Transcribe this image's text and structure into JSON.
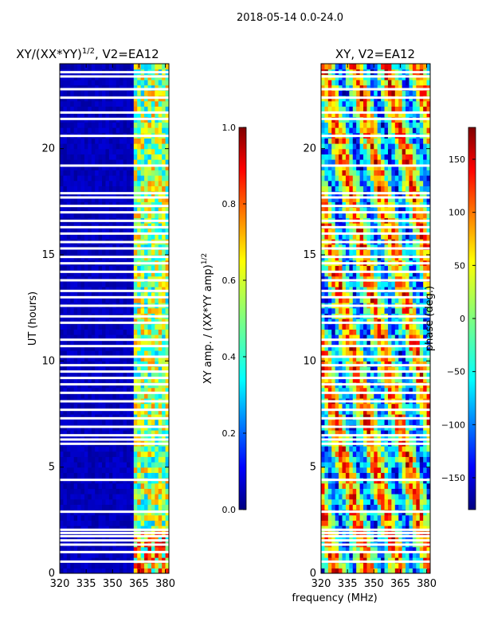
{
  "figure": {
    "suptitle": "2018-05-14 0.0-24.0",
    "xlabel_shared": "frequency (MHz)"
  },
  "colors": {
    "jet": [
      "#00007f",
      "#0000ff",
      "#007fff",
      "#00ffff",
      "#7fff7f",
      "#ffff00",
      "#ff7f00",
      "#ff0000",
      "#7f0000"
    ],
    "gap": "#ffffff"
  },
  "chart_data": [
    {
      "type": "heatmap",
      "title_prefix": "XY/(XX*YY)",
      "title_exp": "1/2",
      "title_suffix": ", V2=EA12",
      "xlabel": "",
      "ylabel": "UT (hours)",
      "xlim": [
        320,
        382
      ],
      "ylim": [
        0,
        24
      ],
      "xticks": [
        320,
        335,
        350,
        365,
        380
      ],
      "yticks": [
        0,
        5,
        10,
        15,
        20
      ],
      "colorbar": {
        "label_prefix": "XY amp. / (XX*YY amp)",
        "label_exp": "1/2",
        "range": [
          0.0,
          1.0
        ],
        "ticks": [
          "0.0",
          "0.2",
          "0.4",
          "0.6",
          "0.8",
          "1.0"
        ]
      },
      "description_bands": [
        {
          "freq": [
            320,
            360
          ],
          "value": 0.05
        },
        {
          "freq": [
            360,
            382
          ],
          "value": 0.45
        }
      ]
    },
    {
      "type": "heatmap",
      "title": "XY, V2=EA12",
      "xlabel": "frequency (MHz)",
      "ylabel": "",
      "xlim": [
        320,
        382
      ],
      "ylim": [
        0,
        24
      ],
      "xticks": [
        320,
        335,
        350,
        365,
        380
      ],
      "yticks": [
        0,
        5,
        10,
        15,
        20
      ],
      "colorbar": {
        "label": "phase (deg.)",
        "range": [
          -180,
          180
        ],
        "ticks": [
          "−150",
          "−100",
          "−50",
          "0",
          "50",
          "100",
          "150"
        ]
      }
    }
  ],
  "gaps_hours": [
    0.55,
    1.0,
    1.35,
    1.55,
    1.75,
    1.9,
    2.05,
    2.9,
    4.4,
    6.1,
    6.3,
    6.5,
    6.9,
    7.3,
    7.7,
    8.1,
    8.5,
    8.9,
    9.2,
    9.5,
    9.8,
    10.2,
    10.7,
    11.0,
    11.8,
    12.1,
    12.6,
    13.0,
    13.3,
    13.8,
    14.2,
    14.6,
    14.9,
    15.3,
    15.6,
    16.0,
    16.3,
    16.6,
    17.0,
    17.3,
    17.7,
    17.9,
    19.2,
    20.6,
    21.4,
    21.7,
    22.4,
    22.8,
    23.4,
    23.6
  ]
}
